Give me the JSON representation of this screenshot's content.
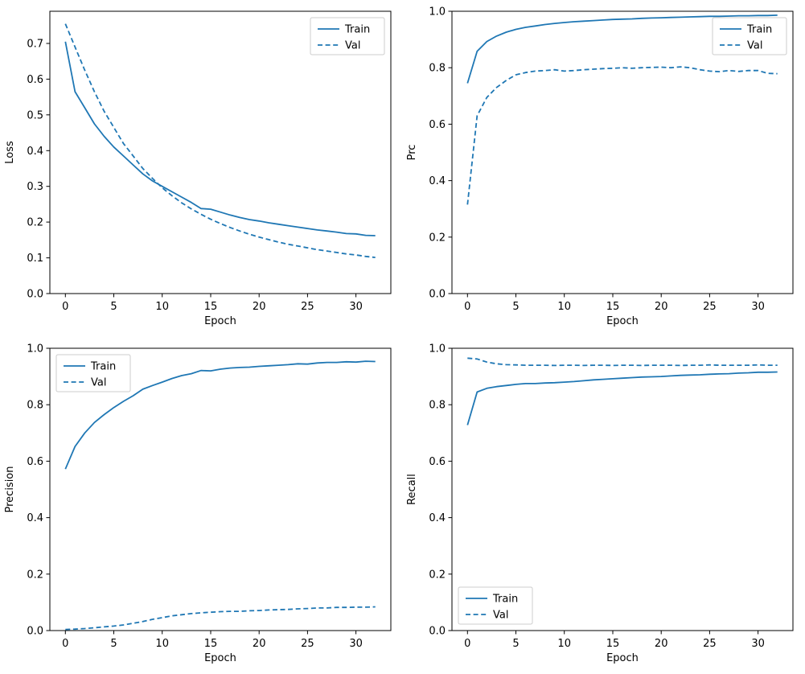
{
  "figure": {
    "background": "#ffffff",
    "accent": "#1f77b4"
  },
  "epochs": [
    0,
    1,
    2,
    3,
    4,
    5,
    6,
    7,
    8,
    9,
    10,
    11,
    12,
    13,
    14,
    15,
    16,
    17,
    18,
    19,
    20,
    21,
    22,
    23,
    24,
    25,
    26,
    27,
    28,
    29,
    30,
    31,
    32
  ],
  "chart_data": [
    {
      "id": "loss",
      "type": "line",
      "title": "",
      "xlabel": "Epoch",
      "ylabel": "Loss",
      "xlim": [
        -1.6,
        33.6
      ],
      "ylim": [
        0,
        0.79
      ],
      "xticks": [
        0,
        5,
        10,
        15,
        20,
        25,
        30
      ],
      "yticks": [
        0.0,
        0.1,
        0.2,
        0.3,
        0.4,
        0.5,
        0.6,
        0.7
      ],
      "legend": {
        "position": "upper-right",
        "entries": [
          "Train",
          "Val"
        ]
      },
      "series": [
        {
          "name": "Train",
          "style": "solid",
          "color": "#1f77b4",
          "values": [
            0.705,
            0.565,
            0.52,
            0.475,
            0.44,
            0.41,
            0.385,
            0.36,
            0.335,
            0.315,
            0.3,
            0.285,
            0.27,
            0.255,
            0.238,
            0.236,
            0.228,
            0.22,
            0.213,
            0.207,
            0.203,
            0.198,
            0.194,
            0.19,
            0.186,
            0.182,
            0.178,
            0.175,
            0.172,
            0.168,
            0.167,
            0.163,
            0.162
          ]
        },
        {
          "name": "Val",
          "style": "dashed",
          "color": "#1f77b4",
          "values": [
            0.755,
            0.69,
            0.625,
            0.565,
            0.51,
            0.465,
            0.42,
            0.385,
            0.35,
            0.322,
            0.296,
            0.274,
            0.254,
            0.237,
            0.222,
            0.208,
            0.196,
            0.185,
            0.175,
            0.166,
            0.158,
            0.151,
            0.144,
            0.138,
            0.133,
            0.128,
            0.123,
            0.119,
            0.115,
            0.111,
            0.108,
            0.104,
            0.101
          ]
        }
      ]
    },
    {
      "id": "prc",
      "type": "line",
      "title": "",
      "xlabel": "Epoch",
      "ylabel": "Prc",
      "xlim": [
        -1.6,
        33.6
      ],
      "ylim": [
        0,
        1.0
      ],
      "xticks": [
        0,
        5,
        10,
        15,
        20,
        25,
        30
      ],
      "yticks": [
        0.0,
        0.2,
        0.4,
        0.6,
        0.8,
        1.0
      ],
      "legend": {
        "position": "upper-right",
        "entries": [
          "Train",
          "Val"
        ]
      },
      "series": [
        {
          "name": "Train",
          "style": "solid",
          "color": "#1f77b4",
          "values": [
            0.745,
            0.858,
            0.893,
            0.912,
            0.926,
            0.936,
            0.943,
            0.948,
            0.953,
            0.957,
            0.96,
            0.963,
            0.965,
            0.967,
            0.969,
            0.971,
            0.972,
            0.973,
            0.975,
            0.976,
            0.977,
            0.978,
            0.979,
            0.98,
            0.981,
            0.982,
            0.982,
            0.983,
            0.984,
            0.984,
            0.985,
            0.985,
            0.986
          ]
        },
        {
          "name": "Val",
          "style": "dashed",
          "color": "#1f77b4",
          "values": [
            0.315,
            0.63,
            0.695,
            0.73,
            0.755,
            0.775,
            0.783,
            0.788,
            0.79,
            0.793,
            0.788,
            0.79,
            0.793,
            0.795,
            0.797,
            0.798,
            0.8,
            0.798,
            0.8,
            0.801,
            0.802,
            0.8,
            0.803,
            0.8,
            0.793,
            0.788,
            0.786,
            0.79,
            0.787,
            0.79,
            0.79,
            0.78,
            0.779
          ]
        }
      ]
    },
    {
      "id": "precision",
      "type": "line",
      "title": "",
      "xlabel": "Epoch",
      "ylabel": "Precision",
      "xlim": [
        -1.6,
        33.6
      ],
      "ylim": [
        0,
        1.0
      ],
      "xticks": [
        0,
        5,
        10,
        15,
        20,
        25,
        30
      ],
      "yticks": [
        0.0,
        0.2,
        0.4,
        0.6,
        0.8,
        1.0
      ],
      "legend": {
        "position": "upper-left",
        "entries": [
          "Train",
          "Val"
        ]
      },
      "series": [
        {
          "name": "Train",
          "style": "solid",
          "color": "#1f77b4",
          "values": [
            0.572,
            0.652,
            0.7,
            0.737,
            0.765,
            0.79,
            0.812,
            0.832,
            0.855,
            0.868,
            0.88,
            0.893,
            0.903,
            0.91,
            0.921,
            0.92,
            0.926,
            0.93,
            0.932,
            0.933,
            0.936,
            0.938,
            0.94,
            0.942,
            0.945,
            0.944,
            0.948,
            0.95,
            0.95,
            0.952,
            0.951,
            0.954,
            0.953
          ]
        },
        {
          "name": "Val",
          "style": "dashed",
          "color": "#1f77b4",
          "values": [
            0.004,
            0.005,
            0.007,
            0.01,
            0.013,
            0.016,
            0.02,
            0.026,
            0.032,
            0.04,
            0.046,
            0.052,
            0.056,
            0.06,
            0.063,
            0.065,
            0.067,
            0.068,
            0.068,
            0.07,
            0.071,
            0.073,
            0.074,
            0.075,
            0.077,
            0.078,
            0.08,
            0.08,
            0.082,
            0.082,
            0.083,
            0.083,
            0.084
          ]
        }
      ]
    },
    {
      "id": "recall",
      "type": "line",
      "title": "",
      "xlabel": "Epoch",
      "ylabel": "Recall",
      "xlim": [
        -1.6,
        33.6
      ],
      "ylim": [
        0,
        1.0
      ],
      "xticks": [
        0,
        5,
        10,
        15,
        20,
        25,
        30
      ],
      "yticks": [
        0.0,
        0.2,
        0.4,
        0.6,
        0.8,
        1.0
      ],
      "legend": {
        "position": "lower-left",
        "entries": [
          "Train",
          "Val"
        ]
      },
      "series": [
        {
          "name": "Train",
          "style": "solid",
          "color": "#1f77b4",
          "values": [
            0.728,
            0.845,
            0.858,
            0.864,
            0.868,
            0.872,
            0.875,
            0.875,
            0.877,
            0.878,
            0.88,
            0.882,
            0.885,
            0.888,
            0.89,
            0.892,
            0.894,
            0.896,
            0.898,
            0.899,
            0.9,
            0.902,
            0.904,
            0.905,
            0.906,
            0.908,
            0.909,
            0.91,
            0.912,
            0.913,
            0.915,
            0.915,
            0.916
          ]
        },
        {
          "name": "Val",
          "style": "dashed",
          "color": "#1f77b4",
          "values": [
            0.965,
            0.962,
            0.951,
            0.945,
            0.942,
            0.941,
            0.94,
            0.94,
            0.94,
            0.939,
            0.94,
            0.94,
            0.939,
            0.94,
            0.94,
            0.939,
            0.94,
            0.94,
            0.939,
            0.94,
            0.94,
            0.94,
            0.939,
            0.94,
            0.94,
            0.941,
            0.94,
            0.94,
            0.94,
            0.94,
            0.941,
            0.94,
            0.94
          ]
        }
      ]
    }
  ]
}
